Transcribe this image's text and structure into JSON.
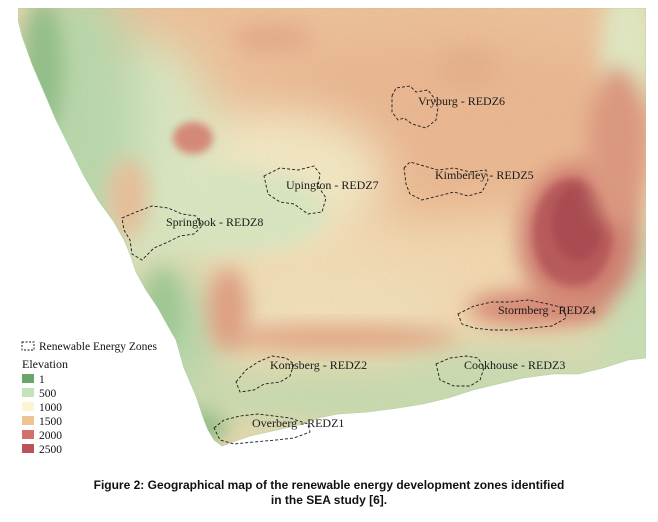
{
  "map": {
    "zones": [
      {
        "id": "vryburg",
        "label": "Vryburg - REDZ6"
      },
      {
        "id": "kimberley",
        "label": "Kimberley - REDZ5"
      },
      {
        "id": "upington",
        "label": "Upington - REDZ7"
      },
      {
        "id": "springbok",
        "label": "Springbok - REDZ8"
      },
      {
        "id": "stormberg",
        "label": "Stormberg - REDZ4"
      },
      {
        "id": "komsberg",
        "label": "Komsberg - REDZ2"
      },
      {
        "id": "cookhouse",
        "label": "Cookhouse - REDZ3"
      },
      {
        "id": "overberg",
        "label": "Overberg - REDZ1"
      }
    ],
    "legend": {
      "zones_label": "Renewable Energy Zones",
      "elevation_title": "Elevation",
      "classes": [
        {
          "value": "1",
          "color": "#6aa56a"
        },
        {
          "value": "500",
          "color": "#c4e3b8"
        },
        {
          "value": "1000",
          "color": "#fbf6cf"
        },
        {
          "value": "1500",
          "color": "#f0c394"
        },
        {
          "value": "2000",
          "color": "#d4706a"
        },
        {
          "value": "2500",
          "color": "#b9525a"
        }
      ]
    }
  },
  "caption": {
    "line1": "Figure 2: Geographical map of the renewable energy development zones identified",
    "line2": "in the SEA study [6]."
  }
}
